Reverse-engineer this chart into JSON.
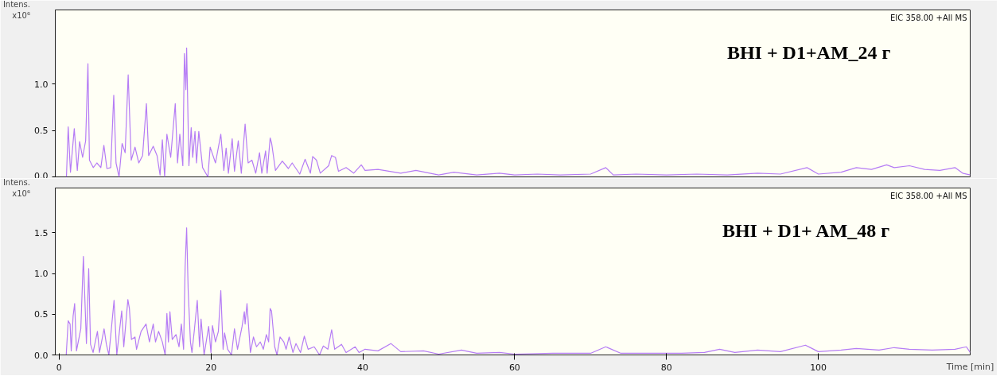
{
  "chart_data": [
    {
      "type": "line",
      "ylabel": "Intens.\nx10⁶",
      "annotations": [
        "EIC 358.00 +All MS",
        "BHI + D1+AM_24 г"
      ],
      "tick_labels": "y",
      "xlim": [
        -0.5,
        120
      ],
      "ylim": [
        0,
        1.8
      ],
      "yticks": [
        {
          "value": 0,
          "label": "0.0"
        },
        {
          "value": 0.5,
          "label": "0.5"
        },
        {
          "value": 1,
          "label": "1.0"
        }
      ],
      "x": [
        0.97,
        1.2,
        1.5,
        2.0,
        2.4,
        2.7,
        3.1,
        3.5,
        3.8,
        4.0,
        4.5,
        4.98,
        5.5,
        5.9,
        6.3,
        6.8,
        7.2,
        7.5,
        7.9,
        8.3,
        8.7,
        9.1,
        9.5,
        10.0,
        10.5,
        11.0,
        11.5,
        11.8,
        12.4,
        12.9,
        13.3,
        13.6,
        13.9,
        14.2,
        14.7,
        15.3,
        15.6,
        15.9,
        16.3,
        16.5,
        16.7,
        16.8,
        17.1,
        17.4,
        17.6,
        17.9,
        18.1,
        18.4,
        18.9,
        19.6,
        19.9,
        20.6,
        21.3,
        21.7,
        22.0,
        22.3,
        22.8,
        23.1,
        23.6,
        24.0,
        24.5,
        24.9,
        25.4,
        25.9,
        26.4,
        26.7,
        27.2,
        27.4,
        27.8,
        28.0,
        28.5,
        29.4,
        30.2,
        30.7,
        31.7,
        32.4,
        33.1,
        33.4,
        33.9,
        34.4,
        35.5,
        35.9,
        36.4,
        36.8,
        37.8,
        38.8,
        39.8,
        40.3,
        42,
        45,
        47,
        50,
        52,
        55,
        58,
        60,
        63,
        66,
        70,
        72,
        73,
        76,
        80,
        84,
        88,
        92,
        95,
        98.5,
        100,
        103,
        105,
        107,
        109,
        110,
        112,
        114,
        116,
        118,
        119,
        120
      ],
      "series": [
        {
          "color": "#b57cf5",
          "values": [
            0,
            0.54,
            0.05,
            0.52,
            0.07,
            0.38,
            0.21,
            0.39,
            1.22,
            0.18,
            0.1,
            0.15,
            0.1,
            0.34,
            0.09,
            0.1,
            0.88,
            0.15,
            0,
            0.36,
            0.26,
            1.1,
            0.18,
            0.32,
            0.15,
            0.23,
            0.79,
            0.23,
            0.33,
            0.23,
            0.02,
            0.4,
            0,
            0.46,
            0.21,
            0.79,
            0.15,
            0.46,
            0.12,
            1.33,
            0.94,
            1.39,
            0.12,
            0.53,
            0.21,
            0.49,
            0.15,
            0.49,
            0.1,
            0,
            0.32,
            0.15,
            0.46,
            0.07,
            0.31,
            0.04,
            0.41,
            0.06,
            0.39,
            0.04,
            0.57,
            0.15,
            0.18,
            0.04,
            0.26,
            0.04,
            0.28,
            0.04,
            0.42,
            0.36,
            0.07,
            0.17,
            0.09,
            0.15,
            0.03,
            0.19,
            0.04,
            0.22,
            0.18,
            0.04,
            0.12,
            0.23,
            0.21,
            0.06,
            0.1,
            0.04,
            0.13,
            0.07,
            0.08,
            0.04,
            0.07,
            0.02,
            0.05,
            0.02,
            0.04,
            0.02,
            0.03,
            0.02,
            0.03,
            0.1,
            0.02,
            0.03,
            0.02,
            0.03,
            0.02,
            0.04,
            0.03,
            0.1,
            0.03,
            0.05,
            0.1,
            0.08,
            0.13,
            0.1,
            0.12,
            0.08,
            0.07,
            0.1,
            0.04,
            0.02
          ]
        }
      ]
    },
    {
      "type": "line",
      "ylabel": "Intens.\nx10⁶",
      "xlabel": "Time [min]",
      "annotations": [
        "EIC 358.00 +All MS",
        "BHI + D1+ AM_48 г"
      ],
      "xlim": [
        -0.5,
        120
      ],
      "ylim": [
        0,
        2.05
      ],
      "xticks": [
        0,
        20,
        40,
        60,
        80,
        100
      ],
      "yticks": [
        {
          "value": 0,
          "label": "0.0"
        },
        {
          "value": 0.5,
          "label": "0.5"
        },
        {
          "value": 1,
          "label": "1.0"
        },
        {
          "value": 1.5,
          "label": "1.5"
        }
      ],
      "x": [
        0.94,
        1.2,
        1.45,
        1.6,
        1.85,
        2.05,
        2.29,
        2.86,
        3.2,
        3.6,
        3.9,
        4.14,
        4.48,
        5.05,
        5.32,
        5.93,
        6.23,
        6.56,
        7.24,
        7.6,
        8.25,
        8.52,
        9.06,
        9.26,
        9.53,
        10.0,
        10.2,
        10.8,
        11.45,
        11.9,
        12.4,
        12.7,
        13.1,
        13.6,
        13.97,
        14.2,
        14.4,
        14.6,
        14.9,
        15.4,
        15.8,
        16.1,
        16.4,
        16.6,
        16.8,
        17.0,
        17.3,
        17.5,
        17.8,
        18.2,
        18.5,
        18.7,
        19.1,
        19.7,
        20.0,
        20.2,
        20.6,
        20.98,
        21.3,
        21.6,
        21.8,
        22.2,
        22.7,
        23.1,
        23.5,
        24.1,
        24.4,
        24.5,
        24.75,
        25.2,
        25.6,
        26.0,
        26.5,
        26.9,
        27.3,
        27.6,
        27.8,
        27.98,
        28.4,
        28.7,
        29.1,
        29.6,
        29.9,
        30.3,
        30.8,
        31.2,
        31.8,
        32.3,
        32.8,
        33.6,
        34.3,
        34.8,
        35.4,
        35.9,
        36.3,
        37.2,
        37.8,
        39.0,
        39.5,
        40.3,
        42,
        43.7,
        45,
        48,
        50,
        53,
        55,
        58,
        60,
        65,
        70,
        72,
        74,
        78,
        82,
        85,
        87,
        89,
        92,
        95,
        98.3,
        100,
        103,
        105,
        108,
        110,
        112,
        115,
        118,
        119.5,
        120
      ],
      "series": [
        {
          "color": "#b57cf5",
          "values": [
            0,
            0.42,
            0.38,
            0.05,
            0.48,
            0.63,
            0.05,
            0.32,
            1.21,
            0.14,
            1.06,
            0.13,
            0.03,
            0.29,
            0.03,
            0.32,
            0.13,
            0,
            0.67,
            0,
            0.54,
            0.1,
            0.68,
            0.57,
            0.19,
            0.22,
            0.07,
            0.29,
            0.38,
            0.16,
            0.38,
            0.16,
            0.29,
            0.16,
            0,
            0.51,
            0.16,
            0.53,
            0.19,
            0.25,
            0.1,
            0.38,
            0.07,
            1.08,
            1.56,
            0.8,
            0.16,
            0.03,
            0.29,
            0.67,
            0.1,
            0.44,
            0,
            0.35,
            0.03,
            0.36,
            0.16,
            0.29,
            0.79,
            0.07,
            0.27,
            0.07,
            0,
            0.32,
            0.07,
            0.35,
            0.53,
            0.38,
            0.63,
            0.03,
            0.22,
            0.1,
            0.16,
            0.07,
            0.25,
            0.16,
            0.57,
            0.54,
            0.1,
            0,
            0.22,
            0.16,
            0.07,
            0.22,
            0.03,
            0.14,
            0.03,
            0.23,
            0.07,
            0.1,
            0,
            0.11,
            0.07,
            0.31,
            0.07,
            0.13,
            0.03,
            0.1,
            0.03,
            0.07,
            0.05,
            0.14,
            0.04,
            0.05,
            0.01,
            0.06,
            0.02,
            0.03,
            0.01,
            0.02,
            0.02,
            0.1,
            0.02,
            0.02,
            0.02,
            0.03,
            0.07,
            0.03,
            0.06,
            0.04,
            0.12,
            0.04,
            0.06,
            0.08,
            0.06,
            0.09,
            0.07,
            0.06,
            0.07,
            0.1,
            0.03
          ]
        }
      ]
    }
  ]
}
